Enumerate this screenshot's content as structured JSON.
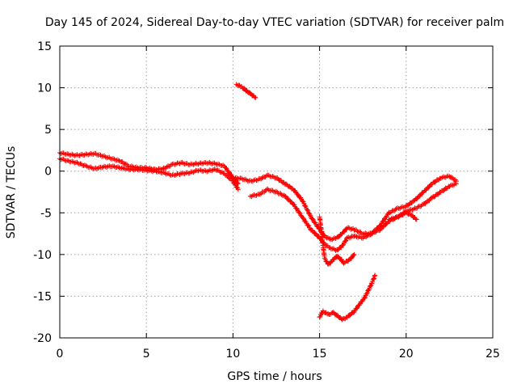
{
  "chart_data": {
    "type": "scatter",
    "title": "Day 145 of 2024, Sidereal Day-to-day VTEC variation (SDTVAR) for receiver palm",
    "xlabel": "GPS time / hours",
    "ylabel": "SDTVAR / TECUs",
    "xlim": [
      0,
      25
    ],
    "ylim": [
      -20,
      15
    ],
    "xticks": [
      0,
      5,
      10,
      15,
      20,
      25
    ],
    "yticks": [
      -20,
      -15,
      -10,
      -5,
      0,
      5,
      10,
      15
    ],
    "grid": true,
    "marker": "plus",
    "color": "#ff0000",
    "series": [
      {
        "name": "SDTVAR",
        "segments": [
          {
            "x": [
              0.0,
              0.5,
              1.0,
              1.5,
              2.0,
              2.5,
              3.0,
              3.5,
              4.0,
              4.5,
              5.0,
              5.5,
              6.0,
              6.5,
              7.0,
              7.5,
              8.0,
              8.5,
              9.0,
              9.5,
              10.0,
              10.3
            ],
            "y": [
              2.2,
              2.0,
              1.9,
              2.0,
              2.1,
              1.8,
              1.5,
              1.2,
              0.6,
              0.4,
              0.4,
              0.2,
              0.3,
              0.8,
              1.0,
              0.8,
              0.9,
              1.0,
              0.9,
              0.6,
              -0.8,
              -1.5
            ]
          },
          {
            "x": [
              0.0,
              0.5,
              1.0,
              1.5,
              2.0,
              2.5,
              3.0,
              3.5,
              4.0,
              4.5,
              5.0,
              5.5,
              6.0,
              6.5,
              7.0,
              7.5,
              8.0,
              8.5,
              9.0,
              9.5,
              10.0,
              10.3
            ],
            "y": [
              1.5,
              1.2,
              1.0,
              0.6,
              0.3,
              0.5,
              0.6,
              0.4,
              0.2,
              0.2,
              0.1,
              0.0,
              -0.2,
              -0.5,
              -0.3,
              -0.2,
              0.1,
              0.0,
              0.2,
              -0.3,
              -1.2,
              -2.2
            ]
          },
          {
            "x": [
              10.2,
              10.5,
              10.8,
              11.0,
              11.3
            ],
            "y": [
              10.4,
              10.1,
              9.6,
              9.3,
              8.8
            ]
          },
          {
            "x": [
              10.0,
              10.5,
              11.0,
              11.5,
              12.0,
              12.5,
              13.0,
              13.5,
              14.0,
              14.5,
              15.0,
              15.3,
              15.6,
              16.0,
              16.3,
              16.6,
              17.0,
              17.5,
              18.0,
              18.5,
              19.0,
              19.5,
              20.0,
              20.5,
              21.0,
              21.5,
              22.0,
              22.5,
              22.9
            ],
            "y": [
              -0.8,
              -0.9,
              -1.2,
              -1.0,
              -0.5,
              -0.8,
              -1.5,
              -2.2,
              -3.5,
              -5.5,
              -7.0,
              -7.8,
              -8.2,
              -8.0,
              -7.5,
              -6.8,
              -7.0,
              -7.5,
              -7.5,
              -6.5,
              -5.0,
              -4.5,
              -4.2,
              -3.5,
              -2.5,
              -1.5,
              -0.8,
              -0.6,
              -1.2
            ]
          },
          {
            "x": [
              11.0,
              11.5,
              12.0,
              12.5,
              13.0,
              13.5,
              14.0,
              14.5,
              15.0,
              15.3,
              15.6,
              16.0,
              16.3,
              16.6,
              17.0,
              17.5,
              18.0,
              18.5,
              19.0,
              19.5,
              20.0,
              20.5,
              21.0,
              21.5,
              22.0,
              22.5,
              22.9
            ],
            "y": [
              -3.0,
              -2.8,
              -2.2,
              -2.5,
              -3.0,
              -4.0,
              -5.5,
              -7.0,
              -8.0,
              -8.8,
              -9.2,
              -9.5,
              -9.0,
              -8.0,
              -7.8,
              -8.0,
              -7.5,
              -7.0,
              -6.0,
              -5.5,
              -4.8,
              -4.5,
              -4.0,
              -3.2,
              -2.5,
              -1.8,
              -1.5
            ]
          },
          {
            "x": [
              15.0,
              15.1,
              15.2,
              15.3,
              15.5,
              15.7,
              16.0,
              16.2,
              16.4,
              16.6,
              16.8,
              17.0
            ],
            "y": [
              -5.5,
              -7.0,
              -9.0,
              -10.5,
              -11.2,
              -10.8,
              -10.2,
              -10.5,
              -11.0,
              -10.8,
              -10.5,
              -10.0
            ]
          },
          {
            "x": [
              15.0,
              15.2,
              15.5,
              15.8,
              16.0,
              16.3,
              16.6,
              17.0,
              17.3,
              17.6,
              18.0,
              18.2
            ],
            "y": [
              -17.5,
              -16.8,
              -17.2,
              -17.0,
              -17.3,
              -17.8,
              -17.5,
              -16.8,
              -16.0,
              -15.2,
              -13.5,
              -12.5
            ]
          },
          {
            "x": [
              19.0,
              19.5,
              20.0,
              20.3,
              20.6
            ],
            "y": [
              -5.8,
              -5.5,
              -5.0,
              -5.3,
              -5.8
            ]
          }
        ]
      }
    ]
  }
}
